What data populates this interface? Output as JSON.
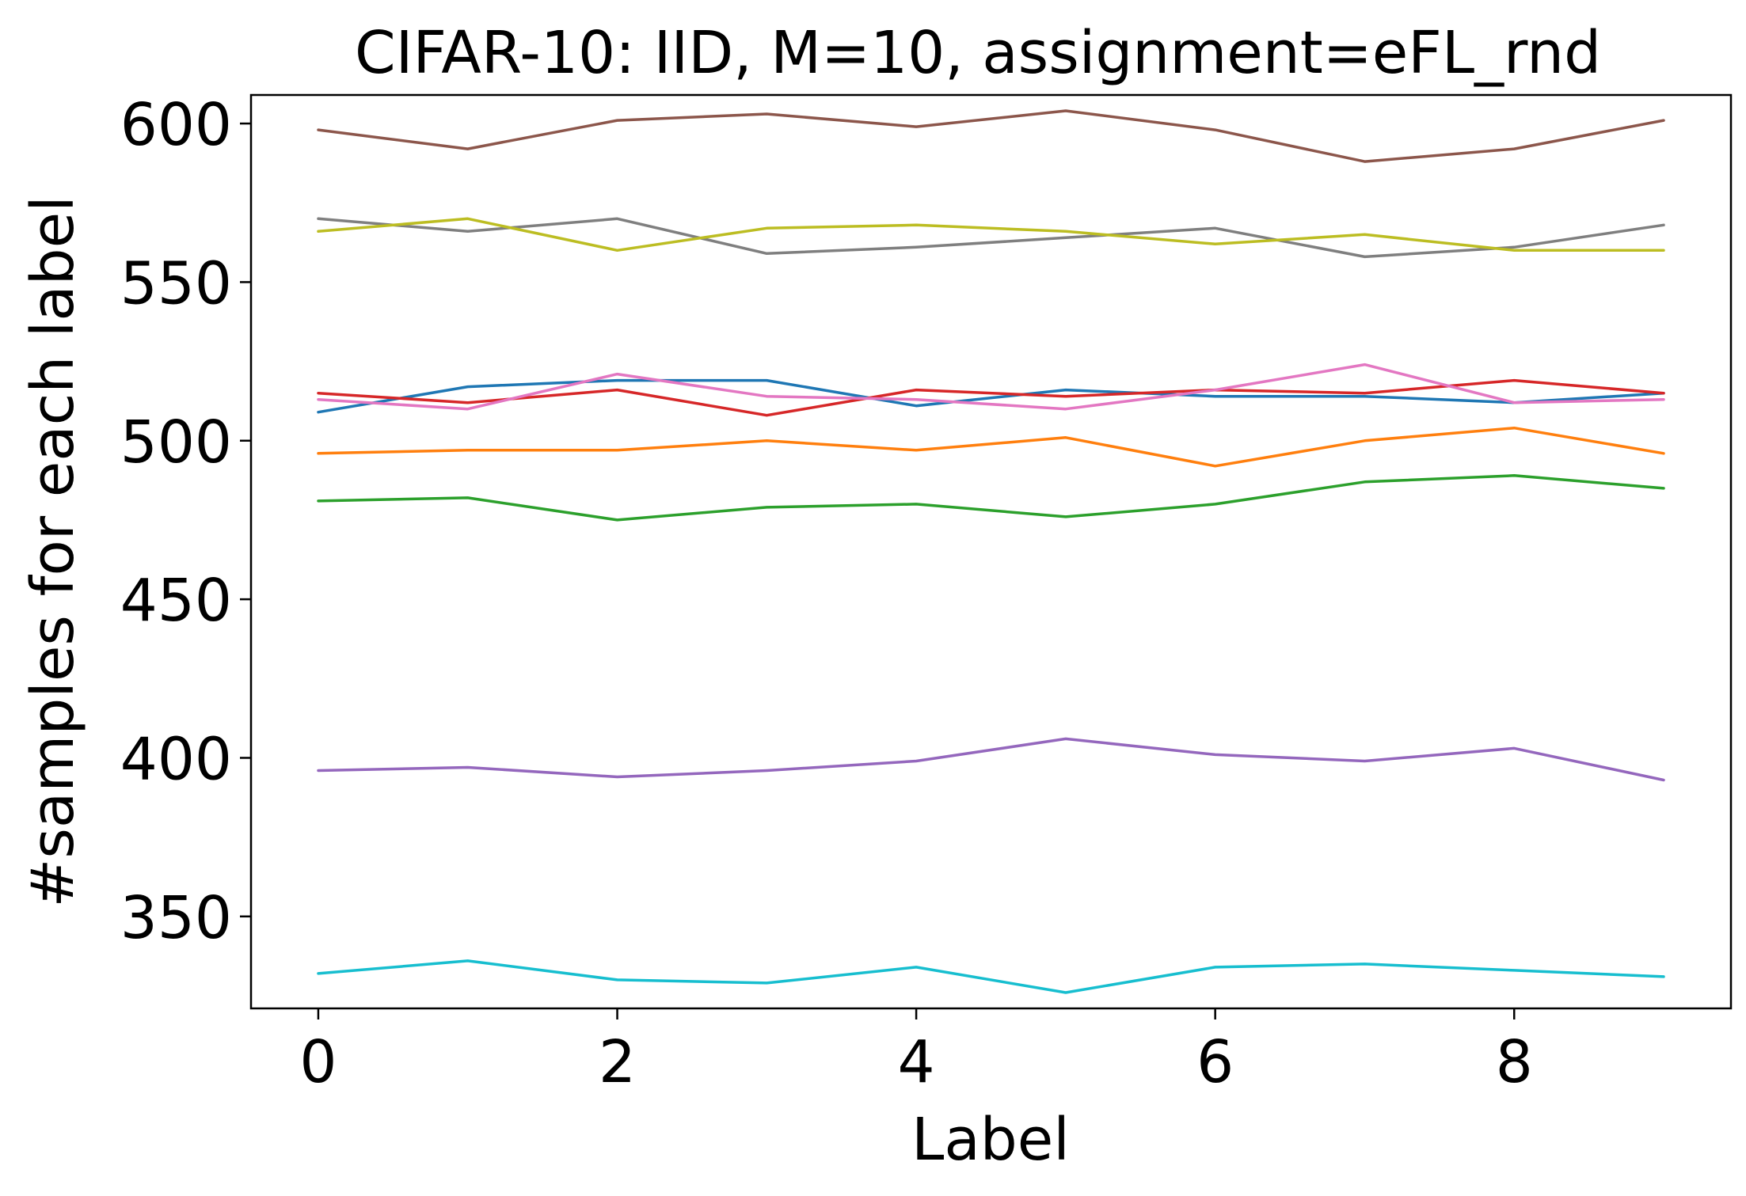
{
  "chart_data": {
    "type": "line",
    "title": "CIFAR-10: IID, M=10, assignment=eFL_rnd",
    "xlabel": "Label",
    "ylabel": "#samples for each label",
    "x": [
      0,
      1,
      2,
      3,
      4,
      5,
      6,
      7,
      8,
      9
    ],
    "xlim": [
      -0.45,
      9.45
    ],
    "ylim": [
      321,
      609
    ],
    "xticks": [
      0,
      2,
      4,
      6,
      8
    ],
    "yticks": [
      350,
      400,
      450,
      500,
      550,
      600
    ],
    "grid": false,
    "legend": "none",
    "series": [
      {
        "color": "#1f77b4",
        "values": [
          509,
          517,
          519,
          519,
          511,
          516,
          514,
          514,
          512,
          515
        ]
      },
      {
        "color": "#ff7f0e",
        "values": [
          496,
          497,
          497,
          500,
          497,
          501,
          492,
          500,
          504,
          496
        ]
      },
      {
        "color": "#2ca02c",
        "values": [
          481,
          482,
          475,
          479,
          480,
          476,
          480,
          487,
          489,
          485
        ]
      },
      {
        "color": "#d62728",
        "values": [
          515,
          512,
          516,
          508,
          516,
          514,
          516,
          515,
          519,
          515
        ]
      },
      {
        "color": "#9467bd",
        "values": [
          396,
          397,
          394,
          396,
          399,
          406,
          401,
          399,
          403,
          393
        ]
      },
      {
        "color": "#8c564b",
        "values": [
          598,
          592,
          601,
          603,
          599,
          604,
          598,
          588,
          592,
          601
        ]
      },
      {
        "color": "#e377c2",
        "values": [
          513,
          510,
          521,
          514,
          513,
          510,
          516,
          524,
          512,
          513
        ]
      },
      {
        "color": "#7f7f7f",
        "values": [
          570,
          566,
          570,
          559,
          561,
          564,
          567,
          558,
          561,
          568
        ]
      },
      {
        "color": "#bcbd22",
        "values": [
          566,
          570,
          560,
          567,
          568,
          566,
          562,
          565,
          560,
          560
        ]
      },
      {
        "color": "#17becf",
        "values": [
          332,
          336,
          330,
          329,
          334,
          326,
          334,
          335,
          333,
          331
        ]
      }
    ]
  }
}
